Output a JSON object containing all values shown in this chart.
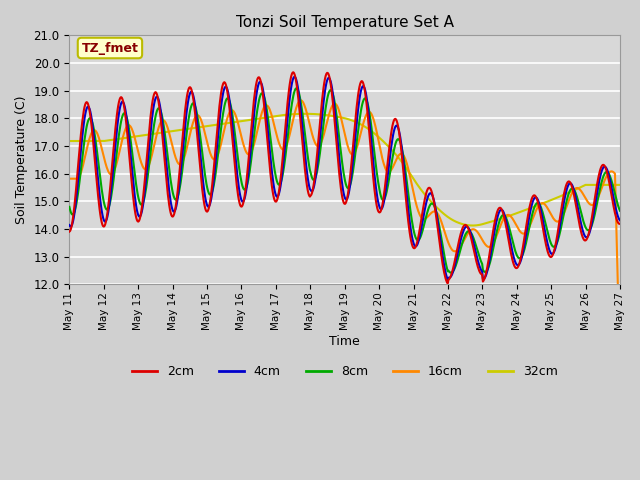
{
  "title": "Tonzi Soil Temperature Set A",
  "xlabel": "Time",
  "ylabel": "Soil Temperature (C)",
  "ylim": [
    12.0,
    21.0
  ],
  "yticks": [
    12.0,
    13.0,
    14.0,
    15.0,
    16.0,
    17.0,
    18.0,
    19.0,
    20.0,
    21.0
  ],
  "annotation_text": "TZ_fmet",
  "annotation_box_color": "#ffffcc",
  "annotation_box_edge": "#bbbb00",
  "legend_labels": [
    "2cm",
    "4cm",
    "8cm",
    "16cm",
    "32cm"
  ],
  "line_colors": [
    "#dd0000",
    "#0000cc",
    "#00aa00",
    "#ff8800",
    "#cccc00"
  ],
  "bg_color": "#d8d8d8",
  "plot_bg_color": "#d8d8d8",
  "grid_color": "#ffffff",
  "n_days": 16,
  "start_day": 11,
  "pts_per_day": 48,
  "figsize": [
    6.4,
    4.8
  ],
  "dpi": 100
}
